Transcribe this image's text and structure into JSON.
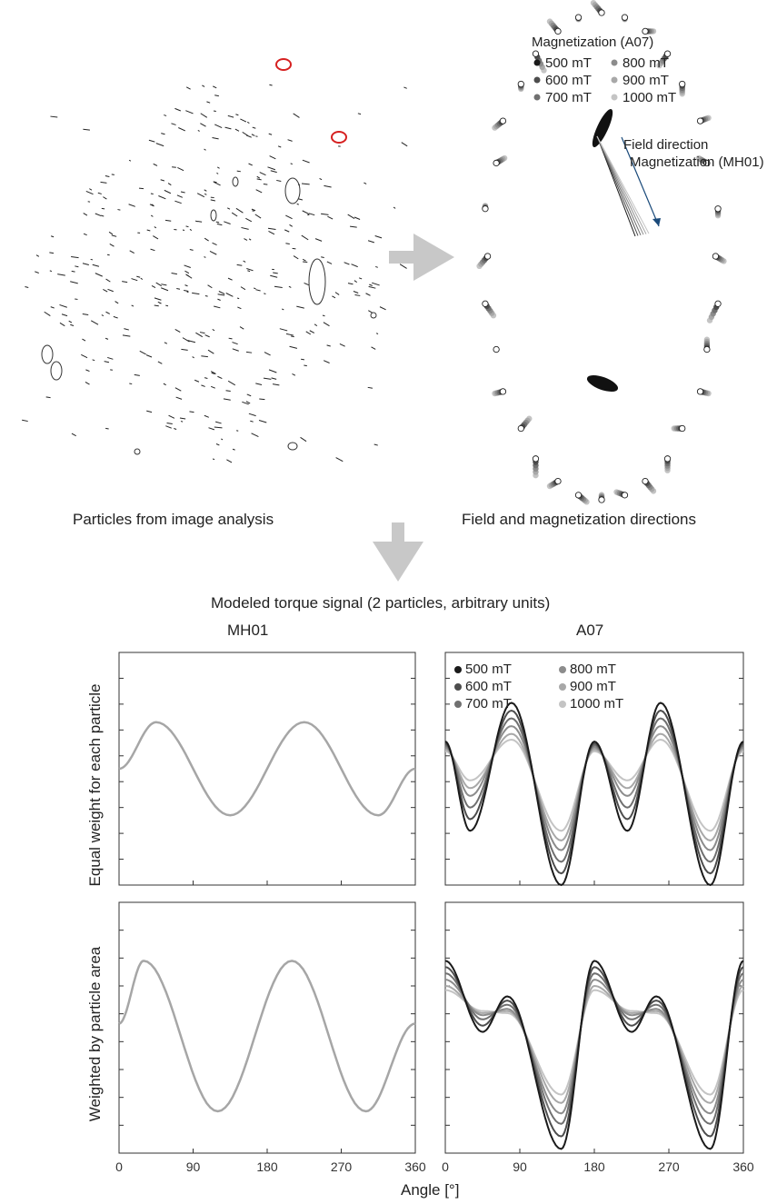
{
  "captions": {
    "particles": "Particles from image analysis",
    "field": "Field and magnetization directions",
    "modeled_title": "Modeled torque signal (2 particles, arbitrary units)",
    "col_left": "MH01",
    "col_right": "A07",
    "row_top": "Equal weight for each particle",
    "row_bottom": "Weighted by particle area",
    "xlabel": "Angle [°]"
  },
  "field_panel": {
    "legend_title": "Magnetization (A07)",
    "legend": [
      "500 mT",
      "600 mT",
      "700 mT",
      "800 mT",
      "900 mT",
      "1000 mT"
    ],
    "arrow_labels": [
      "Field direction",
      "Magnetization (MH01)"
    ]
  },
  "colors": {
    "mh01": "#a6a6a6",
    "fields": [
      "#1a1a1a",
      "#4d4d4d",
      "#707070",
      "#8c8c8c",
      "#a8a8a8",
      "#c4c4c4"
    ]
  },
  "chart_data": [
    {
      "type": "line",
      "panel": "MH01 equal weight",
      "x_ticks": [
        0,
        90,
        180,
        270,
        360
      ],
      "xlim": [
        0,
        360
      ],
      "ylim": [
        -3,
        3
      ],
      "series": [
        {
          "x": [
            0,
            45,
            135,
            225,
            315,
            360
          ],
          "y": [
            0,
            1.2,
            -1.2,
            1.2,
            -1.2,
            0
          ]
        }
      ]
    },
    {
      "type": "line",
      "panel": "A07 equal weight",
      "x_ticks": [
        0,
        90,
        180,
        270,
        360
      ],
      "xlim": [
        0,
        360
      ],
      "ylim": [
        -3,
        3
      ],
      "series": [
        {
          "name": "500 mT",
          "x": [
            0,
            30,
            80,
            140,
            180,
            220,
            260,
            320,
            360
          ],
          "y": [
            0.7,
            -1.6,
            1.7,
            -3.0,
            0.7,
            -1.6,
            1.7,
            -3.0,
            0.7
          ]
        },
        {
          "name": "600 mT",
          "x": [
            0,
            30,
            80,
            140,
            180,
            220,
            260,
            320,
            360
          ],
          "y": [
            0.65,
            -1.3,
            1.5,
            -2.7,
            0.65,
            -1.3,
            1.5,
            -2.7,
            0.65
          ]
        },
        {
          "name": "700 mT",
          "x": [
            0,
            30,
            80,
            140,
            180,
            220,
            260,
            320,
            360
          ],
          "y": [
            0.6,
            -1.0,
            1.3,
            -2.4,
            0.6,
            -1.0,
            1.3,
            -2.4,
            0.6
          ]
        },
        {
          "name": "800 mT",
          "x": [
            0,
            30,
            80,
            140,
            180,
            220,
            260,
            320,
            360
          ],
          "y": [
            0.55,
            -0.7,
            1.1,
            -2.1,
            0.55,
            -0.7,
            1.1,
            -2.1,
            0.55
          ]
        },
        {
          "name": "900 mT",
          "x": [
            0,
            30,
            80,
            140,
            180,
            220,
            260,
            320,
            360
          ],
          "y": [
            0.5,
            -0.5,
            0.9,
            -1.85,
            0.5,
            -0.5,
            0.9,
            -1.85,
            0.5
          ]
        },
        {
          "name": "1000 mT",
          "x": [
            0,
            30,
            80,
            140,
            180,
            220,
            260,
            320,
            360
          ],
          "y": [
            0.45,
            -0.3,
            0.75,
            -1.6,
            0.45,
            -0.3,
            0.75,
            -1.6,
            0.45
          ]
        }
      ]
    },
    {
      "type": "line",
      "panel": "MH01 weighted by area",
      "x_ticks": [
        0,
        90,
        180,
        270,
        360
      ],
      "xlim": [
        0,
        360
      ],
      "ylim": [
        -3,
        3
      ],
      "series": [
        {
          "x": [
            0,
            30,
            120,
            210,
            300,
            360
          ],
          "y": [
            0.1,
            1.6,
            -2.0,
            1.6,
            -2.0,
            0.1
          ]
        }
      ]
    },
    {
      "type": "line",
      "panel": "A07 weighted by area",
      "x_ticks": [
        0,
        90,
        180,
        270,
        360
      ],
      "xlim": [
        0,
        360
      ],
      "ylim": [
        -3,
        3
      ],
      "series": [
        {
          "name": "500 mT",
          "x": [
            0,
            45,
            75,
            140,
            180,
            225,
            255,
            320,
            360
          ],
          "y": [
            1.6,
            -0.1,
            0.75,
            -2.9,
            1.6,
            -0.1,
            0.75,
            -2.9,
            1.6
          ]
        },
        {
          "name": "600 mT",
          "x": [
            0,
            45,
            75,
            140,
            180,
            225,
            255,
            320,
            360
          ],
          "y": [
            1.45,
            0.05,
            0.65,
            -2.6,
            1.45,
            0.05,
            0.65,
            -2.6,
            1.45
          ]
        },
        {
          "name": "700 mT",
          "x": [
            0,
            45,
            75,
            140,
            180,
            225,
            255,
            320,
            360
          ],
          "y": [
            1.3,
            0.2,
            0.55,
            -2.3,
            1.3,
            0.2,
            0.55,
            -2.3,
            1.3
          ]
        },
        {
          "name": "800 mT",
          "x": [
            0,
            45,
            75,
            140,
            180,
            225,
            255,
            320,
            360
          ],
          "y": [
            1.15,
            0.3,
            0.45,
            -2.05,
            1.15,
            0.3,
            0.45,
            -2.05,
            1.15
          ]
        },
        {
          "name": "900 mT",
          "x": [
            0,
            45,
            75,
            140,
            180,
            225,
            255,
            320,
            360
          ],
          "y": [
            1.0,
            0.35,
            0.4,
            -1.8,
            1.0,
            0.35,
            0.4,
            -1.8,
            1.0
          ]
        },
        {
          "name": "1000 mT",
          "x": [
            0,
            45,
            75,
            140,
            180,
            225,
            255,
            320,
            360
          ],
          "y": [
            0.9,
            0.4,
            0.35,
            -1.6,
            0.9,
            0.4,
            0.35,
            -1.6,
            0.9
          ]
        }
      ]
    }
  ]
}
